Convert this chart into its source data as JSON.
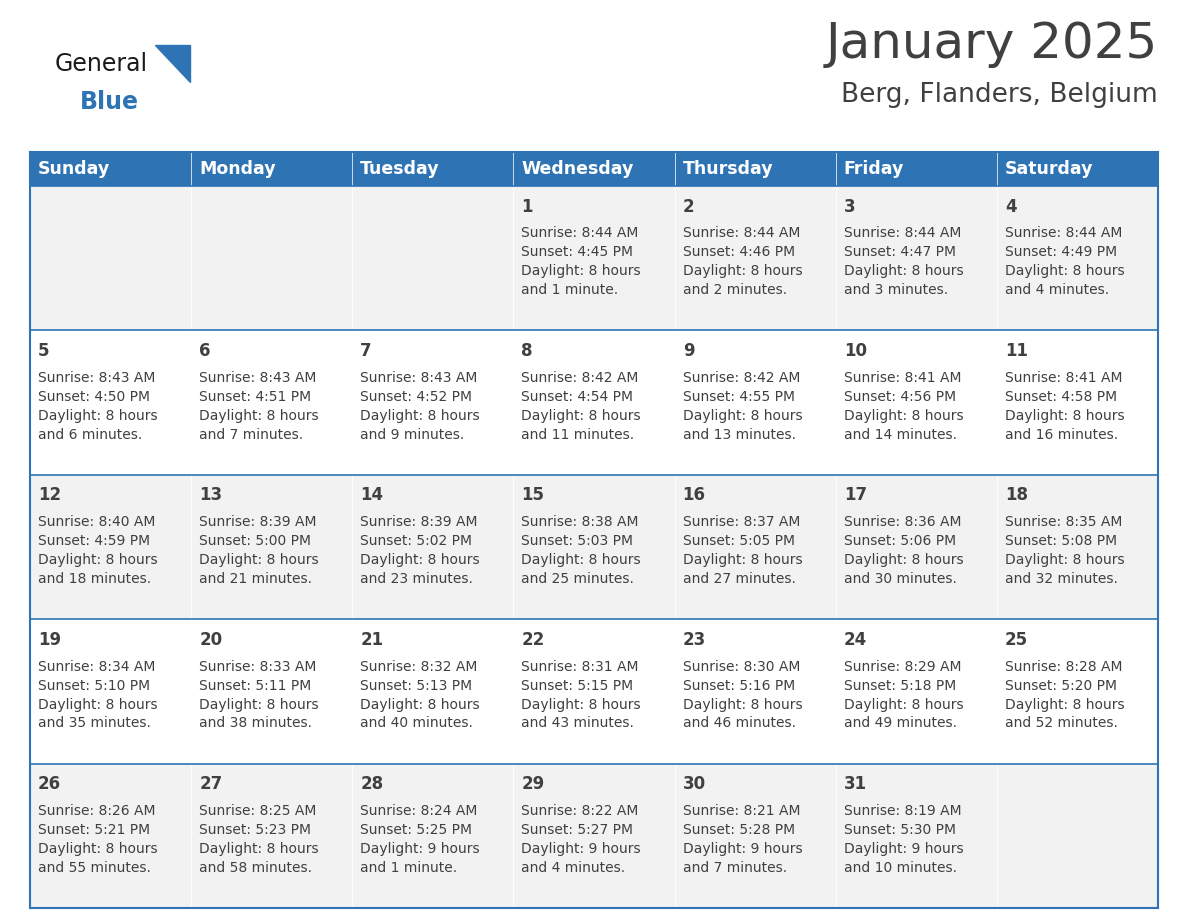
{
  "title": "January 2025",
  "subtitle": "Berg, Flanders, Belgium",
  "header_bg_color": "#2E74B5",
  "header_text_color": "#FFFFFF",
  "row_bg_even": "#F2F2F2",
  "row_bg_odd": "#FFFFFF",
  "border_color": "#2E74B5",
  "text_color": "#404040",
  "days_of_week": [
    "Sunday",
    "Monday",
    "Tuesday",
    "Wednesday",
    "Thursday",
    "Friday",
    "Saturday"
  ],
  "calendar_data": [
    [
      {
        "day": "",
        "info": ""
      },
      {
        "day": "",
        "info": ""
      },
      {
        "day": "",
        "info": ""
      },
      {
        "day": "1",
        "info": "Sunrise: 8:44 AM\nSunset: 4:45 PM\nDaylight: 8 hours\nand 1 minute."
      },
      {
        "day": "2",
        "info": "Sunrise: 8:44 AM\nSunset: 4:46 PM\nDaylight: 8 hours\nand 2 minutes."
      },
      {
        "day": "3",
        "info": "Sunrise: 8:44 AM\nSunset: 4:47 PM\nDaylight: 8 hours\nand 3 minutes."
      },
      {
        "day": "4",
        "info": "Sunrise: 8:44 AM\nSunset: 4:49 PM\nDaylight: 8 hours\nand 4 minutes."
      }
    ],
    [
      {
        "day": "5",
        "info": "Sunrise: 8:43 AM\nSunset: 4:50 PM\nDaylight: 8 hours\nand 6 minutes."
      },
      {
        "day": "6",
        "info": "Sunrise: 8:43 AM\nSunset: 4:51 PM\nDaylight: 8 hours\nand 7 minutes."
      },
      {
        "day": "7",
        "info": "Sunrise: 8:43 AM\nSunset: 4:52 PM\nDaylight: 8 hours\nand 9 minutes."
      },
      {
        "day": "8",
        "info": "Sunrise: 8:42 AM\nSunset: 4:54 PM\nDaylight: 8 hours\nand 11 minutes."
      },
      {
        "day": "9",
        "info": "Sunrise: 8:42 AM\nSunset: 4:55 PM\nDaylight: 8 hours\nand 13 minutes."
      },
      {
        "day": "10",
        "info": "Sunrise: 8:41 AM\nSunset: 4:56 PM\nDaylight: 8 hours\nand 14 minutes."
      },
      {
        "day": "11",
        "info": "Sunrise: 8:41 AM\nSunset: 4:58 PM\nDaylight: 8 hours\nand 16 minutes."
      }
    ],
    [
      {
        "day": "12",
        "info": "Sunrise: 8:40 AM\nSunset: 4:59 PM\nDaylight: 8 hours\nand 18 minutes."
      },
      {
        "day": "13",
        "info": "Sunrise: 8:39 AM\nSunset: 5:00 PM\nDaylight: 8 hours\nand 21 minutes."
      },
      {
        "day": "14",
        "info": "Sunrise: 8:39 AM\nSunset: 5:02 PM\nDaylight: 8 hours\nand 23 minutes."
      },
      {
        "day": "15",
        "info": "Sunrise: 8:38 AM\nSunset: 5:03 PM\nDaylight: 8 hours\nand 25 minutes."
      },
      {
        "day": "16",
        "info": "Sunrise: 8:37 AM\nSunset: 5:05 PM\nDaylight: 8 hours\nand 27 minutes."
      },
      {
        "day": "17",
        "info": "Sunrise: 8:36 AM\nSunset: 5:06 PM\nDaylight: 8 hours\nand 30 minutes."
      },
      {
        "day": "18",
        "info": "Sunrise: 8:35 AM\nSunset: 5:08 PM\nDaylight: 8 hours\nand 32 minutes."
      }
    ],
    [
      {
        "day": "19",
        "info": "Sunrise: 8:34 AM\nSunset: 5:10 PM\nDaylight: 8 hours\nand 35 minutes."
      },
      {
        "day": "20",
        "info": "Sunrise: 8:33 AM\nSunset: 5:11 PM\nDaylight: 8 hours\nand 38 minutes."
      },
      {
        "day": "21",
        "info": "Sunrise: 8:32 AM\nSunset: 5:13 PM\nDaylight: 8 hours\nand 40 minutes."
      },
      {
        "day": "22",
        "info": "Sunrise: 8:31 AM\nSunset: 5:15 PM\nDaylight: 8 hours\nand 43 minutes."
      },
      {
        "day": "23",
        "info": "Sunrise: 8:30 AM\nSunset: 5:16 PM\nDaylight: 8 hours\nand 46 minutes."
      },
      {
        "day": "24",
        "info": "Sunrise: 8:29 AM\nSunset: 5:18 PM\nDaylight: 8 hours\nand 49 minutes."
      },
      {
        "day": "25",
        "info": "Sunrise: 8:28 AM\nSunset: 5:20 PM\nDaylight: 8 hours\nand 52 minutes."
      }
    ],
    [
      {
        "day": "26",
        "info": "Sunrise: 8:26 AM\nSunset: 5:21 PM\nDaylight: 8 hours\nand 55 minutes."
      },
      {
        "day": "27",
        "info": "Sunrise: 8:25 AM\nSunset: 5:23 PM\nDaylight: 8 hours\nand 58 minutes."
      },
      {
        "day": "28",
        "info": "Sunrise: 8:24 AM\nSunset: 5:25 PM\nDaylight: 9 hours\nand 1 minute."
      },
      {
        "day": "29",
        "info": "Sunrise: 8:22 AM\nSunset: 5:27 PM\nDaylight: 9 hours\nand 4 minutes."
      },
      {
        "day": "30",
        "info": "Sunrise: 8:21 AM\nSunset: 5:28 PM\nDaylight: 9 hours\nand 7 minutes."
      },
      {
        "day": "31",
        "info": "Sunrise: 8:19 AM\nSunset: 5:30 PM\nDaylight: 9 hours\nand 10 minutes."
      },
      {
        "day": "",
        "info": ""
      }
    ]
  ],
  "logo_general_color": "#1a1a1a",
  "logo_blue_color": "#2E74B5",
  "title_fontsize": 36,
  "subtitle_fontsize": 19,
  "header_fontsize": 12.5,
  "day_number_fontsize": 12,
  "info_fontsize": 10
}
